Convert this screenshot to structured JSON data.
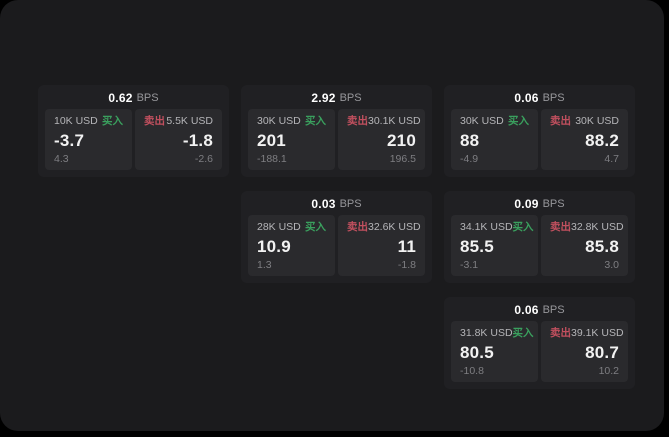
{
  "labels": {
    "bps_unit": "BPS",
    "buy": "买入",
    "sell": "卖出"
  },
  "colors": {
    "surface": "#1b1b1d",
    "card": "#202023",
    "tile": "#2a2a2d",
    "buy": "#3aa05e",
    "sell": "#c2505f"
  },
  "cards": [
    {
      "row": 1,
      "col": 1,
      "bps": "0.62",
      "buy": {
        "notional": "10K USD",
        "price": "-3.7",
        "delta": "4.3"
      },
      "sell": {
        "notional": "5.5K USD",
        "price": "-1.8",
        "delta": "-2.6"
      }
    },
    {
      "row": 1,
      "col": 2,
      "bps": "2.92",
      "buy": {
        "notional": "30K USD",
        "price": "201",
        "delta": "-188.1"
      },
      "sell": {
        "notional": "30.1K USD",
        "price": "210",
        "delta": "196.5"
      }
    },
    {
      "row": 1,
      "col": 3,
      "bps": "0.06",
      "buy": {
        "notional": "30K USD",
        "price": "88",
        "delta": "-4.9"
      },
      "sell": {
        "notional": "30K USD",
        "price": "88.2",
        "delta": "4.7"
      }
    },
    {
      "row": 2,
      "col": 2,
      "bps": "0.03",
      "buy": {
        "notional": "28K USD",
        "price": "10.9",
        "delta": "1.3"
      },
      "sell": {
        "notional": "32.6K USD",
        "price": "11",
        "delta": "-1.8"
      }
    },
    {
      "row": 2,
      "col": 3,
      "bps": "0.09",
      "buy": {
        "notional": "34.1K USD",
        "price": "85.5",
        "delta": "-3.1"
      },
      "sell": {
        "notional": "32.8K USD",
        "price": "85.8",
        "delta": "3.0"
      }
    },
    {
      "row": 3,
      "col": 3,
      "bps": "0.06",
      "buy": {
        "notional": "31.8K USD",
        "price": "80.5",
        "delta": "-10.8"
      },
      "sell": {
        "notional": "39.1K USD",
        "price": "80.7",
        "delta": "10.2"
      }
    }
  ]
}
